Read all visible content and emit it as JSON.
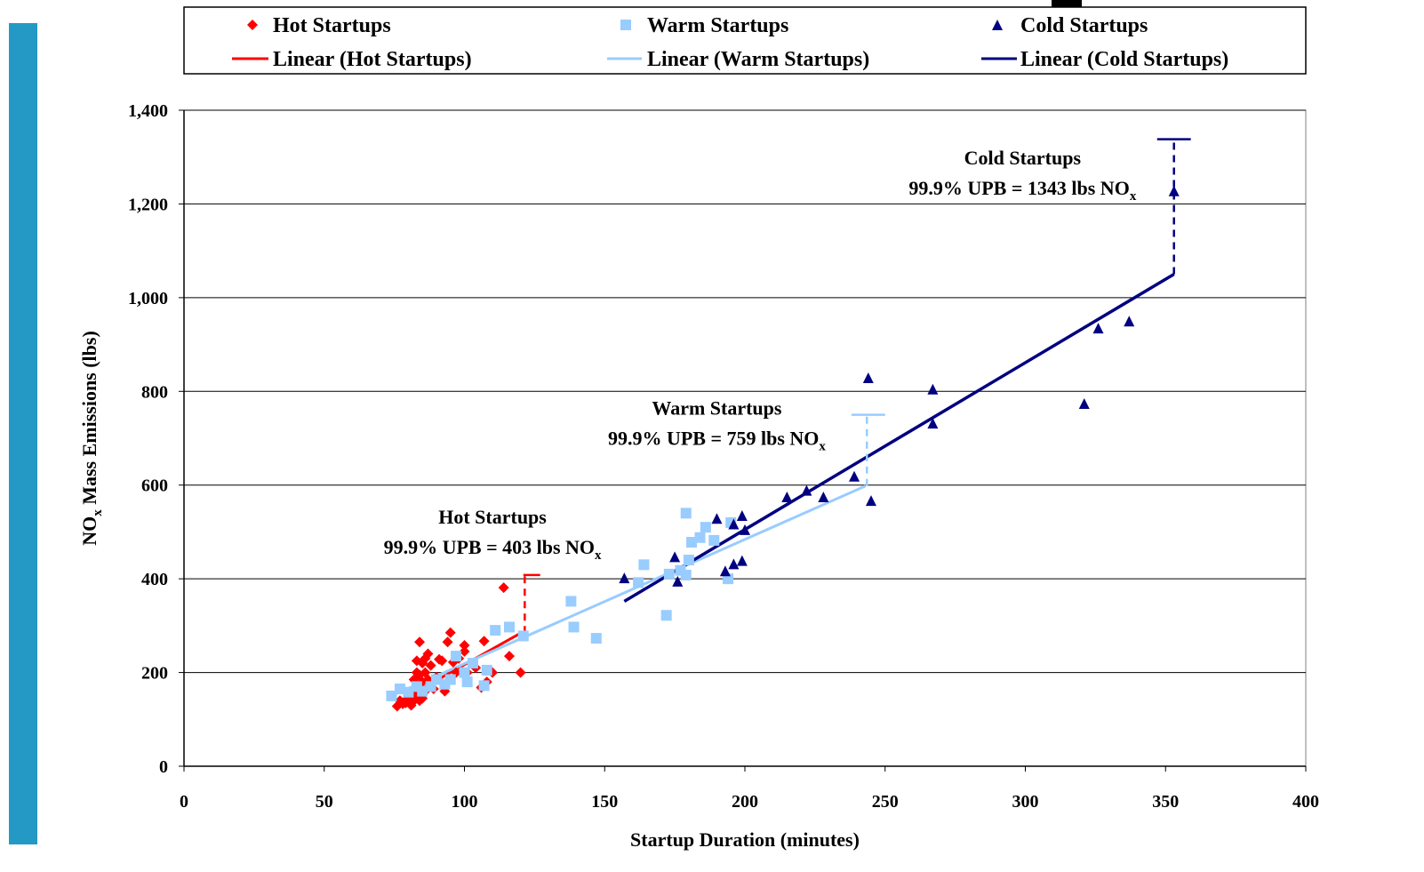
{
  "colors": {
    "hot": "#ff0000",
    "warm": "#99ccff",
    "cold": "#000080",
    "side_bar": "#2499c6",
    "grid": "#000000"
  },
  "chart_data": {
    "type": "scatter",
    "title": "",
    "xlabel": "Startup Duration (minutes)",
    "ylabel_main": "NO",
    "ylabel_sub": "x",
    "ylabel_rest": " Mass Emissions (lbs)",
    "xlim": [
      0,
      400
    ],
    "ylim": [
      0,
      1400
    ],
    "x_ticks": [
      0,
      50,
      100,
      150,
      200,
      250,
      300,
      350,
      400
    ],
    "x_tick_labels": [
      "0",
      "50",
      "100",
      "150",
      "200",
      "250",
      "300",
      "350",
      "400"
    ],
    "y_ticks": [
      0,
      200,
      400,
      600,
      800,
      1000,
      1200,
      1400
    ],
    "y_tick_labels": [
      "0",
      "200",
      "400",
      "600",
      "800",
      "1,000",
      "1,200",
      "1,400"
    ],
    "grid": "horizontal",
    "legend_position": "top",
    "legend": [
      {
        "key": "hot",
        "marker": "diamond",
        "label": "Hot Startups"
      },
      {
        "key": "warm",
        "marker": "square",
        "label": "Warm Startups"
      },
      {
        "key": "cold",
        "marker": "triangle",
        "label": "Cold Startups"
      },
      {
        "key": "hot",
        "marker": "line",
        "label": "Linear (Hot Startups)"
      },
      {
        "key": "warm",
        "marker": "line",
        "label": "Linear (Warm Startups)"
      },
      {
        "key": "cold",
        "marker": "line",
        "label": "Linear (Cold Startups)"
      }
    ],
    "series": [
      {
        "key": "hot",
        "marker": "diamond",
        "x": [
          76,
          77,
          78,
          79,
          80,
          80,
          81,
          82,
          82,
          83,
          83,
          83,
          84,
          84,
          84,
          84,
          85,
          85,
          85,
          85,
          86,
          86,
          86,
          87,
          87,
          88,
          88,
          89,
          90,
          91,
          92,
          93,
          94,
          95,
          96,
          97,
          98,
          100,
          100,
          101,
          104,
          106,
          107,
          108,
          110,
          114,
          116,
          120
        ],
        "y": [
          128,
          140,
          133,
          135,
          145,
          158,
          130,
          140,
          185,
          150,
          200,
          225,
          265,
          195,
          170,
          140,
          220,
          180,
          155,
          145,
          230,
          200,
          160,
          185,
          240,
          215,
          170,
          165,
          190,
          228,
          225,
          160,
          265,
          285,
          222,
          200,
          230,
          245,
          258,
          200,
          210,
          168,
          267,
          180,
          200,
          381,
          235,
          200
        ]
      },
      {
        "key": "warm",
        "marker": "square",
        "x": [
          74,
          77,
          80,
          83,
          85,
          88,
          90,
          93,
          95,
          97,
          100,
          101,
          103,
          107,
          108,
          111,
          116,
          121,
          138,
          139,
          147,
          162,
          164,
          172,
          173,
          177,
          179,
          179,
          180,
          181,
          184,
          186,
          189,
          194,
          195
        ],
        "y": [
          150,
          165,
          158,
          170,
          160,
          170,
          185,
          175,
          185,
          235,
          200,
          180,
          220,
          172,
          205,
          290,
          297,
          278,
          352,
          297,
          273,
          392,
          430,
          322,
          410,
          418,
          408,
          540,
          440,
          478,
          488,
          510,
          482,
          400,
          520
        ]
      },
      {
        "key": "cold",
        "marker": "triangle",
        "x": [
          157,
          175,
          176,
          190,
          193,
          196,
          196,
          199,
          199,
          200,
          215,
          222,
          228,
          239,
          244,
          245,
          267,
          267,
          321,
          326,
          337,
          353
        ],
        "y": [
          400,
          445,
          393,
          527,
          415,
          430,
          515,
          437,
          533,
          503,
          573,
          587,
          573,
          617,
          827,
          565,
          803,
          730,
          772,
          933,
          948,
          1226
        ]
      }
    ],
    "trendlines": [
      {
        "key": "hot",
        "x": [
          76,
          120
        ],
        "y": [
          136,
          284
        ]
      },
      {
        "key": "warm",
        "x": [
          74,
          243
        ],
        "y": [
          150,
          598
        ]
      },
      {
        "key": "cold",
        "x": [
          157,
          353
        ],
        "y": [
          352,
          1050
        ]
      }
    ],
    "upb_markers": [
      {
        "key": "hot",
        "x": 121.5,
        "from_y": 284,
        "to_y": 408,
        "cap_x": [
          121,
          127
        ]
      },
      {
        "key": "warm",
        "x": 243.5,
        "from_y": 598,
        "to_y": 750,
        "cap_x": [
          238,
          250
        ]
      },
      {
        "key": "cold",
        "x": 353,
        "from_y": 1050,
        "to_y": 1338,
        "cap_x": [
          347,
          359
        ]
      }
    ],
    "annotations": [
      {
        "id": "hot",
        "line1": "Hot Startups",
        "line2_main": "99.9% UPB = 403 lbs NO",
        "line2_sub": "x",
        "x": 110,
        "y": 518
      },
      {
        "id": "warm",
        "line1": "Warm Startups",
        "line2_main": "99.9% UPB = 759 lbs NO",
        "line2_sub": "x",
        "x": 190,
        "y": 750
      },
      {
        "id": "cold",
        "line1": "Cold Startups",
        "line2_main": "99.9% UPB = 1343 lbs NO",
        "line2_sub": "x",
        "x": 299,
        "y": 1284
      }
    ]
  }
}
